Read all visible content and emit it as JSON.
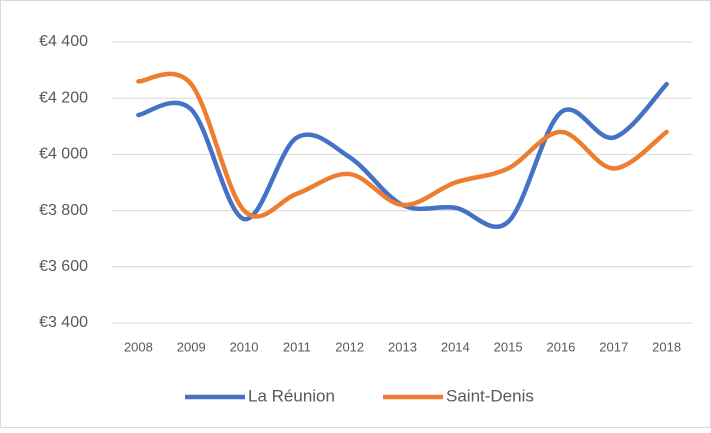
{
  "chart_data": {
    "type": "line",
    "categories": [
      "2008",
      "2009",
      "2010",
      "2011",
      "2012",
      "2013",
      "2014",
      "2015",
      "2016",
      "2017",
      "2018"
    ],
    "series": [
      {
        "name": "La Réunion",
        "color": "#4472c4",
        "values": [
          4140,
          4160,
          3770,
          4060,
          3990,
          3820,
          3810,
          3760,
          4150,
          4060,
          4250
        ]
      },
      {
        "name": "Saint-Denis",
        "color": "#ed7d31",
        "values": [
          4260,
          4250,
          3800,
          3860,
          3930,
          3820,
          3900,
          3950,
          4080,
          3950,
          4080
        ]
      }
    ],
    "ylim": [
      3400,
      4400
    ],
    "yticks": [
      {
        "value": 3400,
        "label": "€3 400"
      },
      {
        "value": 3600,
        "label": "€3 600"
      },
      {
        "value": 3800,
        "label": "€3 800"
      },
      {
        "value": 4000,
        "label": "€4 000"
      },
      {
        "value": 4200,
        "label": "€4 200"
      },
      {
        "value": 4400,
        "label": "€4 400"
      }
    ],
    "grid": true,
    "smooth": true,
    "legend": "bottom"
  }
}
